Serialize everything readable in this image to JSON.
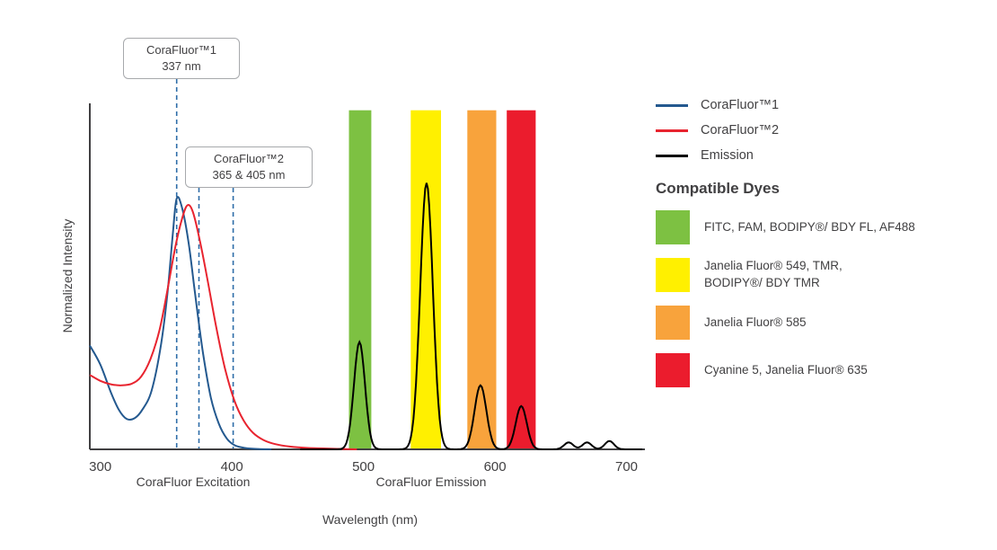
{
  "axes": {
    "x_label": "Wavelength (nm)",
    "y_label": "Normalized Intensity",
    "x_section_labels": [
      "CoraFluor Excitation",
      "CoraFluor Emission"
    ]
  },
  "annotations": [
    {
      "title": "CoraFluor™1",
      "subtitle": "337 nm",
      "lines_nm": [
        358
      ]
    },
    {
      "title": "CoraFluor™2",
      "subtitle": "365 & 405 nm",
      "lines_nm": [
        375,
        401
      ]
    }
  ],
  "legend": {
    "items": [
      {
        "label": "CoraFluor™1",
        "color": "#24598F"
      },
      {
        "label": "CoraFluor™2",
        "color": "#E8242F"
      },
      {
        "label": "Emission",
        "color": "#000000"
      }
    ]
  },
  "compatible_dyes": {
    "heading": "Compatible Dyes",
    "items": [
      {
        "color": "#7DC142",
        "label": "FITC, FAM, BODIPY®/ BDY FL, AF488"
      },
      {
        "color": "#FFF000",
        "label": "Janelia Fluor® 549, TMR,\nBODIPY®/ BDY TMR"
      },
      {
        "color": "#F8A33C",
        "label": "Janelia Fluor® 585"
      },
      {
        "color": "#EB1C2D",
        "label": "Cyanine 5, Janelia Fluor® 635"
      }
    ]
  },
  "chart_data": {
    "type": "line",
    "xlabel": "Wavelength (nm)",
    "ylabel": "Normalized Intensity",
    "xlim": [
      292,
      714
    ],
    "ylim": [
      0,
      1
    ],
    "x_ticks": [
      300,
      400,
      500,
      600,
      700
    ],
    "grid": false,
    "dash_color": "#2E6DA8",
    "bands": [
      {
        "name": "green-filter",
        "color": "#7DC142",
        "from_nm": 489,
        "to_nm": 506
      },
      {
        "name": "yellow-filter",
        "color": "#FFF000",
        "from_nm": 536,
        "to_nm": 559
      },
      {
        "name": "orange-filter",
        "color": "#F8A33C",
        "from_nm": 579,
        "to_nm": 601
      },
      {
        "name": "red-filter",
        "color": "#EB1C2D",
        "from_nm": 609,
        "to_nm": 631
      }
    ],
    "series": [
      {
        "id": "corafluor1-excitation",
        "name": "CoraFluor™1",
        "color": "#24598F",
        "points": [
          [
            292,
            0.3
          ],
          [
            300,
            0.245
          ],
          [
            308,
            0.165
          ],
          [
            314,
            0.115
          ],
          [
            320,
            0.088
          ],
          [
            326,
            0.09
          ],
          [
            332,
            0.115
          ],
          [
            339,
            0.17
          ],
          [
            346,
            0.3
          ],
          [
            351,
            0.45
          ],
          [
            355,
            0.62
          ],
          [
            358,
            0.725
          ],
          [
            362,
            0.7
          ],
          [
            367,
            0.6
          ],
          [
            372,
            0.45
          ],
          [
            378,
            0.28
          ],
          [
            384,
            0.15
          ],
          [
            390,
            0.075
          ],
          [
            396,
            0.032
          ],
          [
            402,
            0.012
          ],
          [
            410,
            0.004
          ],
          [
            420,
            0.001
          ],
          [
            430,
            0.0
          ]
        ]
      },
      {
        "id": "corafluor2-excitation",
        "name": "CoraFluor™2",
        "color": "#E8242F",
        "points": [
          [
            292,
            0.215
          ],
          [
            300,
            0.198
          ],
          [
            308,
            0.188
          ],
          [
            316,
            0.185
          ],
          [
            324,
            0.19
          ],
          [
            331,
            0.21
          ],
          [
            338,
            0.26
          ],
          [
            345,
            0.345
          ],
          [
            351,
            0.46
          ],
          [
            357,
            0.585
          ],
          [
            362,
            0.665
          ],
          [
            366,
            0.705
          ],
          [
            370,
            0.69
          ],
          [
            375,
            0.615
          ],
          [
            381,
            0.5
          ],
          [
            388,
            0.355
          ],
          [
            395,
            0.23
          ],
          [
            402,
            0.14
          ],
          [
            409,
            0.083
          ],
          [
            416,
            0.048
          ],
          [
            424,
            0.027
          ],
          [
            433,
            0.015
          ],
          [
            444,
            0.008
          ],
          [
            458,
            0.004
          ],
          [
            475,
            0.002
          ],
          [
            495,
            0.0
          ]
        ]
      },
      {
        "id": "emission",
        "name": "Emission",
        "color": "#000000",
        "peaks": [
          {
            "center": 497,
            "height": 0.31,
            "sigma": 4.2
          },
          {
            "center": 548,
            "height": 0.77,
            "sigma": 4.8
          },
          {
            "center": 589,
            "height": 0.185,
            "sigma": 4.5
          },
          {
            "center": 620,
            "height": 0.125,
            "sigma": 4.2
          },
          {
            "center": 656,
            "height": 0.02,
            "sigma": 3.5
          },
          {
            "center": 670,
            "height": 0.02,
            "sigma": 3.5
          },
          {
            "center": 687,
            "height": 0.024,
            "sigma": 3.5
          }
        ]
      }
    ]
  }
}
